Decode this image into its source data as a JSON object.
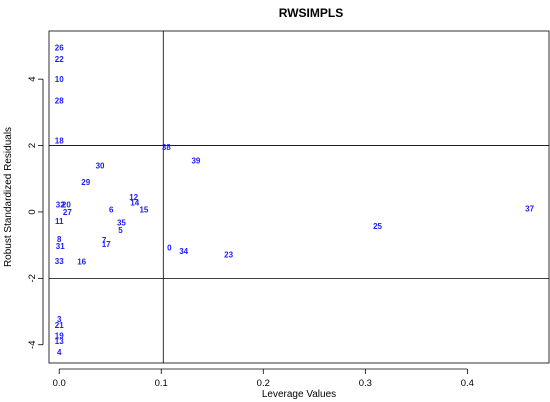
{
  "chart_data": {
    "type": "scatter",
    "title": "RWSIMPLS",
    "xlabel": "Leverage Values",
    "ylabel": "Robust Standardized Residuals",
    "xlim": [
      -0.01,
      0.48
    ],
    "ylim": [
      -4.55,
      5.45
    ],
    "x_ticks": [
      0.0,
      0.1,
      0.2,
      0.3,
      0.4
    ],
    "x_tick_labels": [
      "0.0",
      "0.1",
      "0.2",
      "0.3",
      "0.4"
    ],
    "y_ticks": [
      -4,
      -2,
      0,
      2,
      4
    ],
    "y_tick_labels": [
      "-4",
      "-2",
      "0",
      "2",
      "4"
    ],
    "reference_lines": {
      "vertical": [
        0.102
      ],
      "horizontal": [
        2,
        -2
      ]
    },
    "grid": false,
    "point_color": "#1a1aff",
    "points": [
      {
        "label": "26",
        "x": 0.0,
        "y": 4.95
      },
      {
        "label": "22",
        "x": 0.0,
        "y": 4.6
      },
      {
        "label": "10",
        "x": 0.0,
        "y": 4.0
      },
      {
        "label": "28",
        "x": 0.0,
        "y": 3.35
      },
      {
        "label": "18",
        "x": 0.0,
        "y": 2.15
      },
      {
        "label": "38",
        "x": 0.105,
        "y": 1.95
      },
      {
        "label": "39",
        "x": 0.134,
        "y": 1.55
      },
      {
        "label": "30",
        "x": 0.04,
        "y": 1.4
      },
      {
        "label": "29",
        "x": 0.026,
        "y": 0.9
      },
      {
        "label": "12",
        "x": 0.073,
        "y": 0.45
      },
      {
        "label": "14",
        "x": 0.074,
        "y": 0.28
      },
      {
        "label": "32",
        "x": 0.001,
        "y": 0.22
      },
      {
        "label": "20",
        "x": 0.007,
        "y": 0.22
      },
      {
        "label": "6",
        "x": 0.051,
        "y": 0.07
      },
      {
        "label": "15",
        "x": 0.083,
        "y": 0.07
      },
      {
        "label": "27",
        "x": 0.008,
        "y": 0.0
      },
      {
        "label": "37",
        "x": 0.461,
        "y": 0.1
      },
      {
        "label": "11",
        "x": 0.0,
        "y": -0.28
      },
      {
        "label": "35",
        "x": 0.061,
        "y": -0.32
      },
      {
        "label": "25",
        "x": 0.312,
        "y": -0.42
      },
      {
        "label": "5",
        "x": 0.06,
        "y": -0.55
      },
      {
        "label": "8",
        "x": 0.0,
        "y": -0.82
      },
      {
        "label": "7",
        "x": 0.044,
        "y": -0.85
      },
      {
        "label": "17",
        "x": 0.046,
        "y": -0.97
      },
      {
        "label": "31",
        "x": 0.001,
        "y": -1.02
      },
      {
        "label": "0",
        "x": 0.108,
        "y": -1.07
      },
      {
        "label": "34",
        "x": 0.122,
        "y": -1.17
      },
      {
        "label": "23",
        "x": 0.166,
        "y": -1.28
      },
      {
        "label": "33",
        "x": 0.0,
        "y": -1.48
      },
      {
        "label": "16",
        "x": 0.022,
        "y": -1.5
      },
      {
        "label": "3",
        "x": 0.0,
        "y": -3.22
      },
      {
        "label": "21",
        "x": 0.0,
        "y": -3.4
      },
      {
        "label": "19",
        "x": 0.0,
        "y": -3.72
      },
      {
        "label": "13",
        "x": 0.0,
        "y": -3.88
      },
      {
        "label": "4",
        "x": 0.0,
        "y": -4.22
      }
    ]
  }
}
